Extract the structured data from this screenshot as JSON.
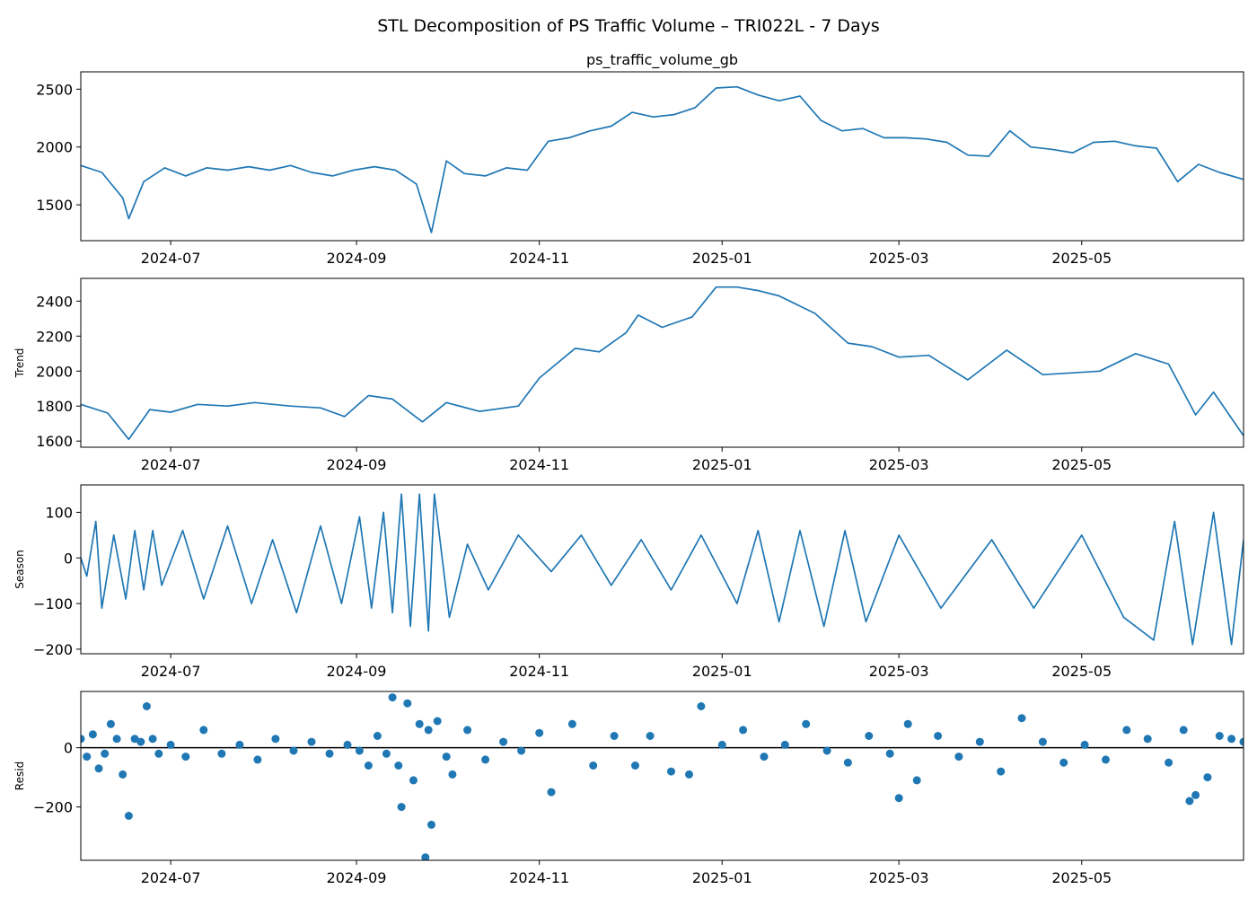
{
  "title": "STL Decomposition of PS Traffic Volume – TRI022L - 7 Days",
  "x_range": [
    "2024-06-01",
    "2025-06-24"
  ],
  "x_ticks": [
    "2024-07",
    "2024-09",
    "2024-11",
    "2025-01",
    "2025-03",
    "2025-05"
  ],
  "colors": {
    "line": "#1f77b4",
    "zero_line": "#000000"
  },
  "chart_data": [
    {
      "type": "line",
      "title": "ps_traffic_volume_gb",
      "ylabel": "",
      "ylim": [
        1190,
        2650
      ],
      "y_ticks": [
        1500,
        2000,
        2500
      ],
      "x": [
        "2024-06-01",
        "2024-06-08",
        "2024-06-15",
        "2024-06-17",
        "2024-06-22",
        "2024-06-29",
        "2024-07-06",
        "2024-07-13",
        "2024-07-20",
        "2024-07-27",
        "2024-08-03",
        "2024-08-10",
        "2024-08-17",
        "2024-08-24",
        "2024-08-31",
        "2024-09-07",
        "2024-09-14",
        "2024-09-21",
        "2024-09-26",
        "2024-10-01",
        "2024-10-07",
        "2024-10-14",
        "2024-10-21",
        "2024-10-28",
        "2024-11-04",
        "2024-11-11",
        "2024-11-18",
        "2024-11-25",
        "2024-12-02",
        "2024-12-09",
        "2024-12-16",
        "2024-12-23",
        "2024-12-30",
        "2025-01-06",
        "2025-01-13",
        "2025-01-20",
        "2025-01-27",
        "2025-02-03",
        "2025-02-10",
        "2025-02-17",
        "2025-02-24",
        "2025-03-03",
        "2025-03-10",
        "2025-03-17",
        "2025-03-24",
        "2025-03-31",
        "2025-04-07",
        "2025-04-14",
        "2025-04-21",
        "2025-04-28",
        "2025-05-05",
        "2025-05-12",
        "2025-05-19",
        "2025-05-26",
        "2025-06-02",
        "2025-06-09",
        "2025-06-16",
        "2025-06-24"
      ],
      "series": [
        {
          "values": [
            1840,
            1780,
            1560,
            1380,
            1700,
            1820,
            1750,
            1820,
            1800,
            1830,
            1800,
            1840,
            1780,
            1750,
            1800,
            1830,
            1800,
            1680,
            1260,
            1880,
            1770,
            1750,
            1820,
            1800,
            2050,
            2080,
            2140,
            2180,
            2300,
            2260,
            2280,
            2340,
            2510,
            2520,
            2450,
            2400,
            2440,
            2230,
            2140,
            2160,
            2080,
            2080,
            2070,
            2040,
            1930,
            1920,
            2140,
            2000,
            1980,
            1950,
            2040,
            2050,
            2010,
            1990,
            1700,
            1850,
            1780,
            1720
          ]
        }
      ]
    },
    {
      "type": "line",
      "title": "",
      "ylabel": "Trend",
      "ylim": [
        1565,
        2530
      ],
      "y_ticks": [
        1600,
        1800,
        2000,
        2200,
        2400
      ],
      "x": [
        "2024-06-01",
        "2024-06-10",
        "2024-06-17",
        "2024-06-24",
        "2024-07-01",
        "2024-07-10",
        "2024-07-20",
        "2024-07-29",
        "2024-08-10",
        "2024-08-20",
        "2024-08-28",
        "2024-09-05",
        "2024-09-13",
        "2024-09-23",
        "2024-10-01",
        "2024-10-12",
        "2024-10-25",
        "2024-11-01",
        "2024-11-13",
        "2024-11-21",
        "2024-11-30",
        "2024-12-04",
        "2024-12-12",
        "2024-12-22",
        "2024-12-30",
        "2025-01-06",
        "2025-01-13",
        "2025-01-20",
        "2025-02-01",
        "2025-02-12",
        "2025-02-20",
        "2025-03-01",
        "2025-03-11",
        "2025-03-24",
        "2025-04-06",
        "2025-04-18",
        "2025-04-28",
        "2025-05-07",
        "2025-05-19",
        "2025-05-30",
        "2025-06-08",
        "2025-06-14",
        "2025-06-24"
      ],
      "series": [
        {
          "values": [
            1810,
            1760,
            1610,
            1780,
            1765,
            1810,
            1800,
            1820,
            1800,
            1790,
            1740,
            1860,
            1840,
            1710,
            1820,
            1770,
            1800,
            1960,
            2130,
            2110,
            2220,
            2320,
            2250,
            2310,
            2480,
            2480,
            2460,
            2430,
            2330,
            2160,
            2140,
            2080,
            2090,
            1950,
            2120,
            1980,
            1990,
            2000,
            2100,
            2040,
            1750,
            1880,
            1630
          ]
        }
      ]
    },
    {
      "type": "line",
      "title": "",
      "ylabel": "Season",
      "ylim": [
        -210,
        160
      ],
      "y_ticks": [
        -200,
        -100,
        0,
        100
      ],
      "x": [
        "2024-06-01",
        "2024-06-03",
        "2024-06-06",
        "2024-06-08",
        "2024-06-12",
        "2024-06-16",
        "2024-06-19",
        "2024-06-22",
        "2024-06-25",
        "2024-06-28",
        "2024-07-05",
        "2024-07-12",
        "2024-07-20",
        "2024-07-28",
        "2024-08-04",
        "2024-08-12",
        "2024-08-20",
        "2024-08-27",
        "2024-09-02",
        "2024-09-06",
        "2024-09-10",
        "2024-09-13",
        "2024-09-16",
        "2024-09-19",
        "2024-09-22",
        "2024-09-25",
        "2024-09-27",
        "2024-10-02",
        "2024-10-08",
        "2024-10-15",
        "2024-10-25",
        "2024-11-05",
        "2024-11-15",
        "2024-11-25",
        "2024-12-05",
        "2024-12-15",
        "2024-12-25",
        "2025-01-06",
        "2025-01-13",
        "2025-01-20",
        "2025-01-27",
        "2025-02-04",
        "2025-02-11",
        "2025-02-18",
        "2025-03-01",
        "2025-03-15",
        "2025-04-01",
        "2025-04-15",
        "2025-05-01",
        "2025-05-15",
        "2025-05-25",
        "2025-06-01",
        "2025-06-07",
        "2025-06-14",
        "2025-06-20",
        "2025-06-24"
      ],
      "series": [
        {
          "values": [
            0,
            -40,
            80,
            -110,
            50,
            -90,
            60,
            -70,
            60,
            -60,
            60,
            -90,
            70,
            -100,
            40,
            -120,
            70,
            -100,
            90,
            -110,
            100,
            -120,
            140,
            -150,
            140,
            -160,
            140,
            -130,
            30,
            -70,
            50,
            -30,
            50,
            -60,
            40,
            -70,
            50,
            -100,
            60,
            -140,
            60,
            -150,
            60,
            -140,
            50,
            -110,
            40,
            -110,
            50,
            -130,
            -180,
            80,
            -190,
            100,
            -190,
            40
          ]
        }
      ]
    },
    {
      "type": "scatter",
      "title": "",
      "ylabel": "Resid",
      "ylim": [
        -380,
        190
      ],
      "y_ticks": [
        -200,
        0
      ],
      "x": [
        "2024-06-01",
        "2024-06-03",
        "2024-06-05",
        "2024-06-07",
        "2024-06-09",
        "2024-06-11",
        "2024-06-13",
        "2024-06-15",
        "2024-06-17",
        "2024-06-19",
        "2024-06-21",
        "2024-06-23",
        "2024-06-25",
        "2024-06-27",
        "2024-07-01",
        "2024-07-06",
        "2024-07-12",
        "2024-07-18",
        "2024-07-24",
        "2024-07-30",
        "2024-08-05",
        "2024-08-11",
        "2024-08-17",
        "2024-08-23",
        "2024-08-29",
        "2024-09-02",
        "2024-09-05",
        "2024-09-08",
        "2024-09-11",
        "2024-09-13",
        "2024-09-15",
        "2024-09-16",
        "2024-09-18",
        "2024-09-20",
        "2024-09-22",
        "2024-09-24",
        "2024-09-25",
        "2024-09-26",
        "2024-09-28",
        "2024-10-01",
        "2024-10-03",
        "2024-10-08",
        "2024-10-14",
        "2024-10-20",
        "2024-10-26",
        "2024-11-01",
        "2024-11-05",
        "2024-11-12",
        "2024-11-19",
        "2024-11-26",
        "2024-12-03",
        "2024-12-08",
        "2024-12-15",
        "2024-12-21",
        "2024-12-25",
        "2025-01-01",
        "2025-01-08",
        "2025-01-15",
        "2025-01-22",
        "2025-01-29",
        "2025-02-05",
        "2025-02-12",
        "2025-02-19",
        "2025-02-26",
        "2025-03-01",
        "2025-03-04",
        "2025-03-07",
        "2025-03-14",
        "2025-03-21",
        "2025-03-28",
        "2025-04-04",
        "2025-04-11",
        "2025-04-18",
        "2025-04-25",
        "2025-05-02",
        "2025-05-09",
        "2025-05-16",
        "2025-05-23",
        "2025-05-30",
        "2025-06-04",
        "2025-06-06",
        "2025-06-08",
        "2025-06-12",
        "2025-06-16",
        "2025-06-20",
        "2025-06-24"
      ],
      "series": [
        {
          "values": [
            30,
            -30,
            45,
            -70,
            -20,
            80,
            30,
            -90,
            -230,
            30,
            20,
            140,
            30,
            -20,
            10,
            -30,
            60,
            -20,
            10,
            -40,
            30,
            -10,
            20,
            -20,
            10,
            -10,
            -60,
            40,
            -20,
            170,
            -60,
            -200,
            150,
            -110,
            80,
            -370,
            60,
            -260,
            90,
            -30,
            -90,
            60,
            -40,
            20,
            -10,
            50,
            -150,
            80,
            -60,
            40,
            -60,
            40,
            -80,
            -90,
            140,
            10,
            60,
            -30,
            10,
            80,
            -10,
            -50,
            40,
            -20,
            -170,
            80,
            -110,
            40,
            -30,
            20,
            -80,
            100,
            20,
            -50,
            10,
            -40,
            60,
            30,
            -50,
            60,
            -180,
            -160,
            -100,
            40,
            30,
            20
          ]
        }
      ]
    }
  ]
}
